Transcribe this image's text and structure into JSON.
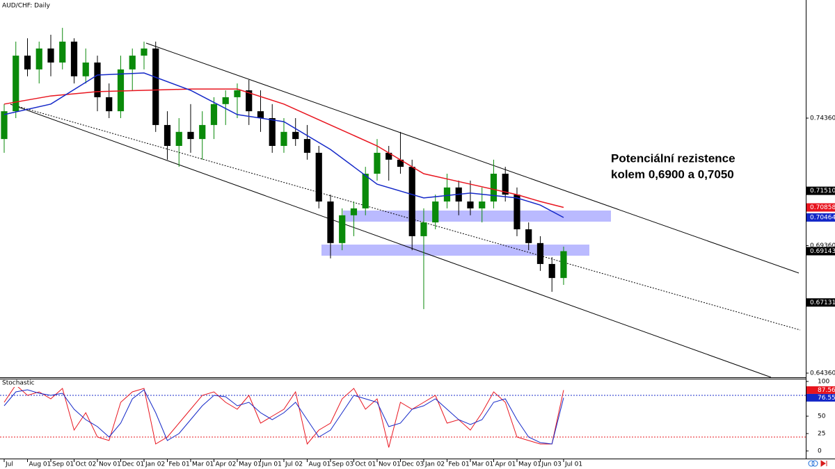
{
  "chart_data": {
    "type": "candlestick",
    "title": "AUD/CHF: Daily",
    "annotation": [
      "Potenciální rezistence",
      "kolem 0,6900 a 0,7050"
    ],
    "up_color": "#0a8a0a",
    "down_color": "#000000",
    "xlim": [
      -0.179,
      34.39
    ],
    "xticks": [
      {
        "value": 0,
        "label": "Jul"
      },
      {
        "value": 1,
        "label": "Aug 01"
      },
      {
        "value": 2,
        "label": "Sep 01"
      },
      {
        "value": 3,
        "label": "Oct 02"
      },
      {
        "value": 4,
        "label": "Nov 01"
      },
      {
        "value": 5,
        "label": "Dec 01"
      },
      {
        "value": 6,
        "label": "Jan 02"
      },
      {
        "value": 7,
        "label": "Feb 01"
      },
      {
        "value": 8,
        "label": "Mar 01"
      },
      {
        "value": 9,
        "label": "Apr 02"
      },
      {
        "value": 10,
        "label": "May 01"
      },
      {
        "value": 11,
        "label": "Jun 01"
      },
      {
        "value": 12,
        "label": "Jul 02"
      },
      {
        "value": 13,
        "label": "Aug 01"
      },
      {
        "value": 14,
        "label": "Sep 03"
      },
      {
        "value": 15,
        "label": "Oct 01"
      },
      {
        "value": 16,
        "label": "Nov 01"
      },
      {
        "value": 17,
        "label": "Dec 03"
      },
      {
        "value": 18,
        "label": "Jan 02"
      },
      {
        "value": 19,
        "label": "Feb 01"
      },
      {
        "value": 20,
        "label": "Mar 01"
      },
      {
        "value": 21,
        "label": "Apr 01"
      },
      {
        "value": 22,
        "label": "May 01"
      },
      {
        "value": 23,
        "label": "Jun 03"
      },
      {
        "value": 24,
        "label": "Jul 01"
      }
    ],
    "ylim": [
      0.64197,
      0.78992
    ],
    "yticks": [
      {
        "value": 0.7436,
        "label": "0.74360"
      },
      {
        "value": 0.6936,
        "label": "0.69360"
      },
      {
        "value": 0.6436,
        "label": "0.64360"
      }
    ],
    "price_levels": [
      {
        "value": 0.7151,
        "label": "0.71510"
      },
      {
        "value": 0.67131,
        "label": "0.67131"
      }
    ],
    "candles": [
      {
        "x": 0,
        "open": 0.7354,
        "high": 0.7491,
        "low": 0.73,
        "close": 0.7463
      },
      {
        "x": 0.5,
        "open": 0.7463,
        "high": 0.7736,
        "low": 0.7436,
        "close": 0.7681
      },
      {
        "x": 1,
        "open": 0.7681,
        "high": 0.7749,
        "low": 0.76,
        "close": 0.7627
      },
      {
        "x": 1.5,
        "open": 0.7627,
        "high": 0.7736,
        "low": 0.7572,
        "close": 0.7709
      },
      {
        "x": 2,
        "open": 0.7709,
        "high": 0.7763,
        "low": 0.76,
        "close": 0.7654
      },
      {
        "x": 2.5,
        "open": 0.7654,
        "high": 0.779,
        "low": 0.7627,
        "close": 0.7736
      },
      {
        "x": 3,
        "open": 0.7736,
        "high": 0.7749,
        "low": 0.7572,
        "close": 0.76
      },
      {
        "x": 3.5,
        "open": 0.76,
        "high": 0.7709,
        "low": 0.7572,
        "close": 0.7654
      },
      {
        "x": 4,
        "open": 0.7654,
        "high": 0.7681,
        "low": 0.7463,
        "close": 0.7518
      },
      {
        "x": 4.5,
        "open": 0.7518,
        "high": 0.7572,
        "low": 0.7436,
        "close": 0.7463
      },
      {
        "x": 5,
        "open": 0.7463,
        "high": 0.7681,
        "low": 0.7436,
        "close": 0.7627
      },
      {
        "x": 5.5,
        "open": 0.7627,
        "high": 0.7709,
        "low": 0.7545,
        "close": 0.7681
      },
      {
        "x": 6,
        "open": 0.7681,
        "high": 0.7736,
        "low": 0.7627,
        "close": 0.7709
      },
      {
        "x": 6.5,
        "open": 0.7709,
        "high": 0.7736,
        "low": 0.7382,
        "close": 0.7409
      },
      {
        "x": 7,
        "open": 0.7409,
        "high": 0.7463,
        "low": 0.7273,
        "close": 0.7327
      },
      {
        "x": 7.5,
        "open": 0.7327,
        "high": 0.7436,
        "low": 0.7245,
        "close": 0.7382
      },
      {
        "x": 8,
        "open": 0.7382,
        "high": 0.7491,
        "low": 0.73,
        "close": 0.7354
      },
      {
        "x": 8.5,
        "open": 0.7354,
        "high": 0.7463,
        "low": 0.7273,
        "close": 0.7409
      },
      {
        "x": 9,
        "open": 0.7409,
        "high": 0.7518,
        "low": 0.7354,
        "close": 0.7491
      },
      {
        "x": 9.5,
        "open": 0.7491,
        "high": 0.7545,
        "low": 0.7409,
        "close": 0.7518
      },
      {
        "x": 10,
        "open": 0.7518,
        "high": 0.7572,
        "low": 0.7436,
        "close": 0.7545
      },
      {
        "x": 10.5,
        "open": 0.7545,
        "high": 0.7586,
        "low": 0.7409,
        "close": 0.7463
      },
      {
        "x": 11,
        "open": 0.7463,
        "high": 0.7545,
        "low": 0.7382,
        "close": 0.7436
      },
      {
        "x": 11.5,
        "open": 0.7436,
        "high": 0.7491,
        "low": 0.73,
        "close": 0.7327
      },
      {
        "x": 12,
        "open": 0.7327,
        "high": 0.7436,
        "low": 0.73,
        "close": 0.7382
      },
      {
        "x": 12.5,
        "open": 0.7382,
        "high": 0.7436,
        "low": 0.7327,
        "close": 0.7354
      },
      {
        "x": 13,
        "open": 0.7354,
        "high": 0.7409,
        "low": 0.7273,
        "close": 0.73
      },
      {
        "x": 13.5,
        "open": 0.73,
        "high": 0.7327,
        "low": 0.7082,
        "close": 0.7109
      },
      {
        "x": 14,
        "open": 0.7109,
        "high": 0.7136,
        "low": 0.6886,
        "close": 0.6946
      },
      {
        "x": 14.5,
        "open": 0.6946,
        "high": 0.7082,
        "low": 0.6918,
        "close": 0.7055
      },
      {
        "x": 15,
        "open": 0.7055,
        "high": 0.7109,
        "low": 0.6973,
        "close": 0.7082
      },
      {
        "x": 15.5,
        "open": 0.7082,
        "high": 0.7245,
        "low": 0.7055,
        "close": 0.7218
      },
      {
        "x": 16,
        "open": 0.7218,
        "high": 0.7354,
        "low": 0.7191,
        "close": 0.73
      },
      {
        "x": 16.5,
        "open": 0.73,
        "high": 0.7327,
        "low": 0.7191,
        "close": 0.7273
      },
      {
        "x": 17,
        "open": 0.7273,
        "high": 0.7382,
        "low": 0.7218,
        "close": 0.7245
      },
      {
        "x": 17.5,
        "open": 0.7245,
        "high": 0.7273,
        "low": 0.6918,
        "close": 0.6973
      },
      {
        "x": 18,
        "open": 0.6973,
        "high": 0.7082,
        "low": 0.6687,
        "close": 0.7027
      },
      {
        "x": 18.5,
        "open": 0.7027,
        "high": 0.7136,
        "low": 0.7,
        "close": 0.7109
      },
      {
        "x": 19,
        "open": 0.7109,
        "high": 0.7218,
        "low": 0.7082,
        "close": 0.7164
      },
      {
        "x": 19.5,
        "open": 0.7164,
        "high": 0.7191,
        "low": 0.7055,
        "close": 0.7109
      },
      {
        "x": 20,
        "open": 0.7109,
        "high": 0.7191,
        "low": 0.7055,
        "close": 0.7082
      },
      {
        "x": 20.5,
        "open": 0.7082,
        "high": 0.7164,
        "low": 0.7027,
        "close": 0.7109
      },
      {
        "x": 21,
        "open": 0.7109,
        "high": 0.7273,
        "low": 0.7082,
        "close": 0.7218
      },
      {
        "x": 21.5,
        "open": 0.7218,
        "high": 0.7245,
        "low": 0.7109,
        "close": 0.7136
      },
      {
        "x": 22,
        "open": 0.7136,
        "high": 0.7164,
        "low": 0.6973,
        "close": 0.7
      },
      {
        "x": 22.5,
        "open": 0.7,
        "high": 0.7027,
        "low": 0.6918,
        "close": 0.6946
      },
      {
        "x": 23,
        "open": 0.6946,
        "high": 0.6973,
        "low": 0.6837,
        "close": 0.6864
      },
      {
        "x": 23.5,
        "open": 0.6864,
        "high": 0.6891,
        "low": 0.6755,
        "close": 0.6809
      },
      {
        "x": 24,
        "open": 0.6809,
        "high": 0.6932,
        "low": 0.6782,
        "close": 0.69143
      }
    ],
    "series": [
      {
        "color": "#e8141e",
        "x": [
          0,
          2,
          4,
          6,
          8,
          10,
          12,
          14,
          16,
          18,
          20,
          22,
          23,
          24
        ],
        "values": [
          0.7491,
          0.7523,
          0.754,
          0.7545,
          0.755,
          0.755,
          0.7491,
          0.7409,
          0.7327,
          0.7218,
          0.7177,
          0.7136,
          0.7109,
          0.70858
        ]
      },
      {
        "color": "#1428c8",
        "x": [
          0,
          2,
          4,
          6,
          8,
          10,
          12,
          14,
          16,
          18,
          20,
          22,
          23,
          24
        ],
        "values": [
          0.745,
          0.7491,
          0.7605,
          0.7613,
          0.7545,
          0.745,
          0.7422,
          0.7313,
          0.7177,
          0.7123,
          0.7142,
          0.7123,
          0.7095,
          0.70464
        ]
      }
    ],
    "stochastic": {
      "title": "Stochastic",
      "ylim": [
        -11,
        104
      ],
      "yticks": [
        100,
        50,
        25,
        0
      ],
      "levels": [
        80,
        20
      ],
      "x": [
        0,
        0.5,
        1,
        1.5,
        2,
        2.5,
        3,
        3.5,
        4,
        4.5,
        5,
        5.5,
        6,
        6.5,
        7,
        7.5,
        8,
        8.5,
        9,
        9.5,
        10,
        10.5,
        11,
        11.5,
        12,
        12.5,
        13,
        13.5,
        14,
        14.5,
        15,
        15.5,
        16,
        16.5,
        17,
        17.5,
        18,
        18.5,
        19,
        19.5,
        20,
        20.5,
        21,
        21.5,
        22,
        22.5,
        23,
        23.5,
        24
      ],
      "series": [
        {
          "color": "#e8141e",
          "values": [
            70,
            95,
            80,
            85,
            75,
            90,
            30,
            55,
            20,
            15,
            70,
            85,
            90,
            10,
            20,
            40,
            60,
            80,
            85,
            70,
            60,
            80,
            40,
            50,
            60,
            85,
            10,
            30,
            40,
            75,
            90,
            60,
            75,
            5,
            70,
            60,
            70,
            80,
            40,
            45,
            30,
            55,
            85,
            70,
            20,
            15,
            10,
            10,
            87.56
          ]
        },
        {
          "color": "#1428c8",
          "values": [
            65,
            85,
            88,
            83,
            80,
            83,
            60,
            45,
            35,
            20,
            40,
            75,
            88,
            55,
            15,
            25,
            45,
            65,
            80,
            78,
            65,
            70,
            55,
            45,
            55,
            70,
            45,
            20,
            30,
            55,
            80,
            75,
            70,
            35,
            40,
            60,
            65,
            75,
            60,
            45,
            38,
            45,
            70,
            75,
            45,
            20,
            12,
            10,
            76.55
          ]
        }
      ]
    }
  }
}
